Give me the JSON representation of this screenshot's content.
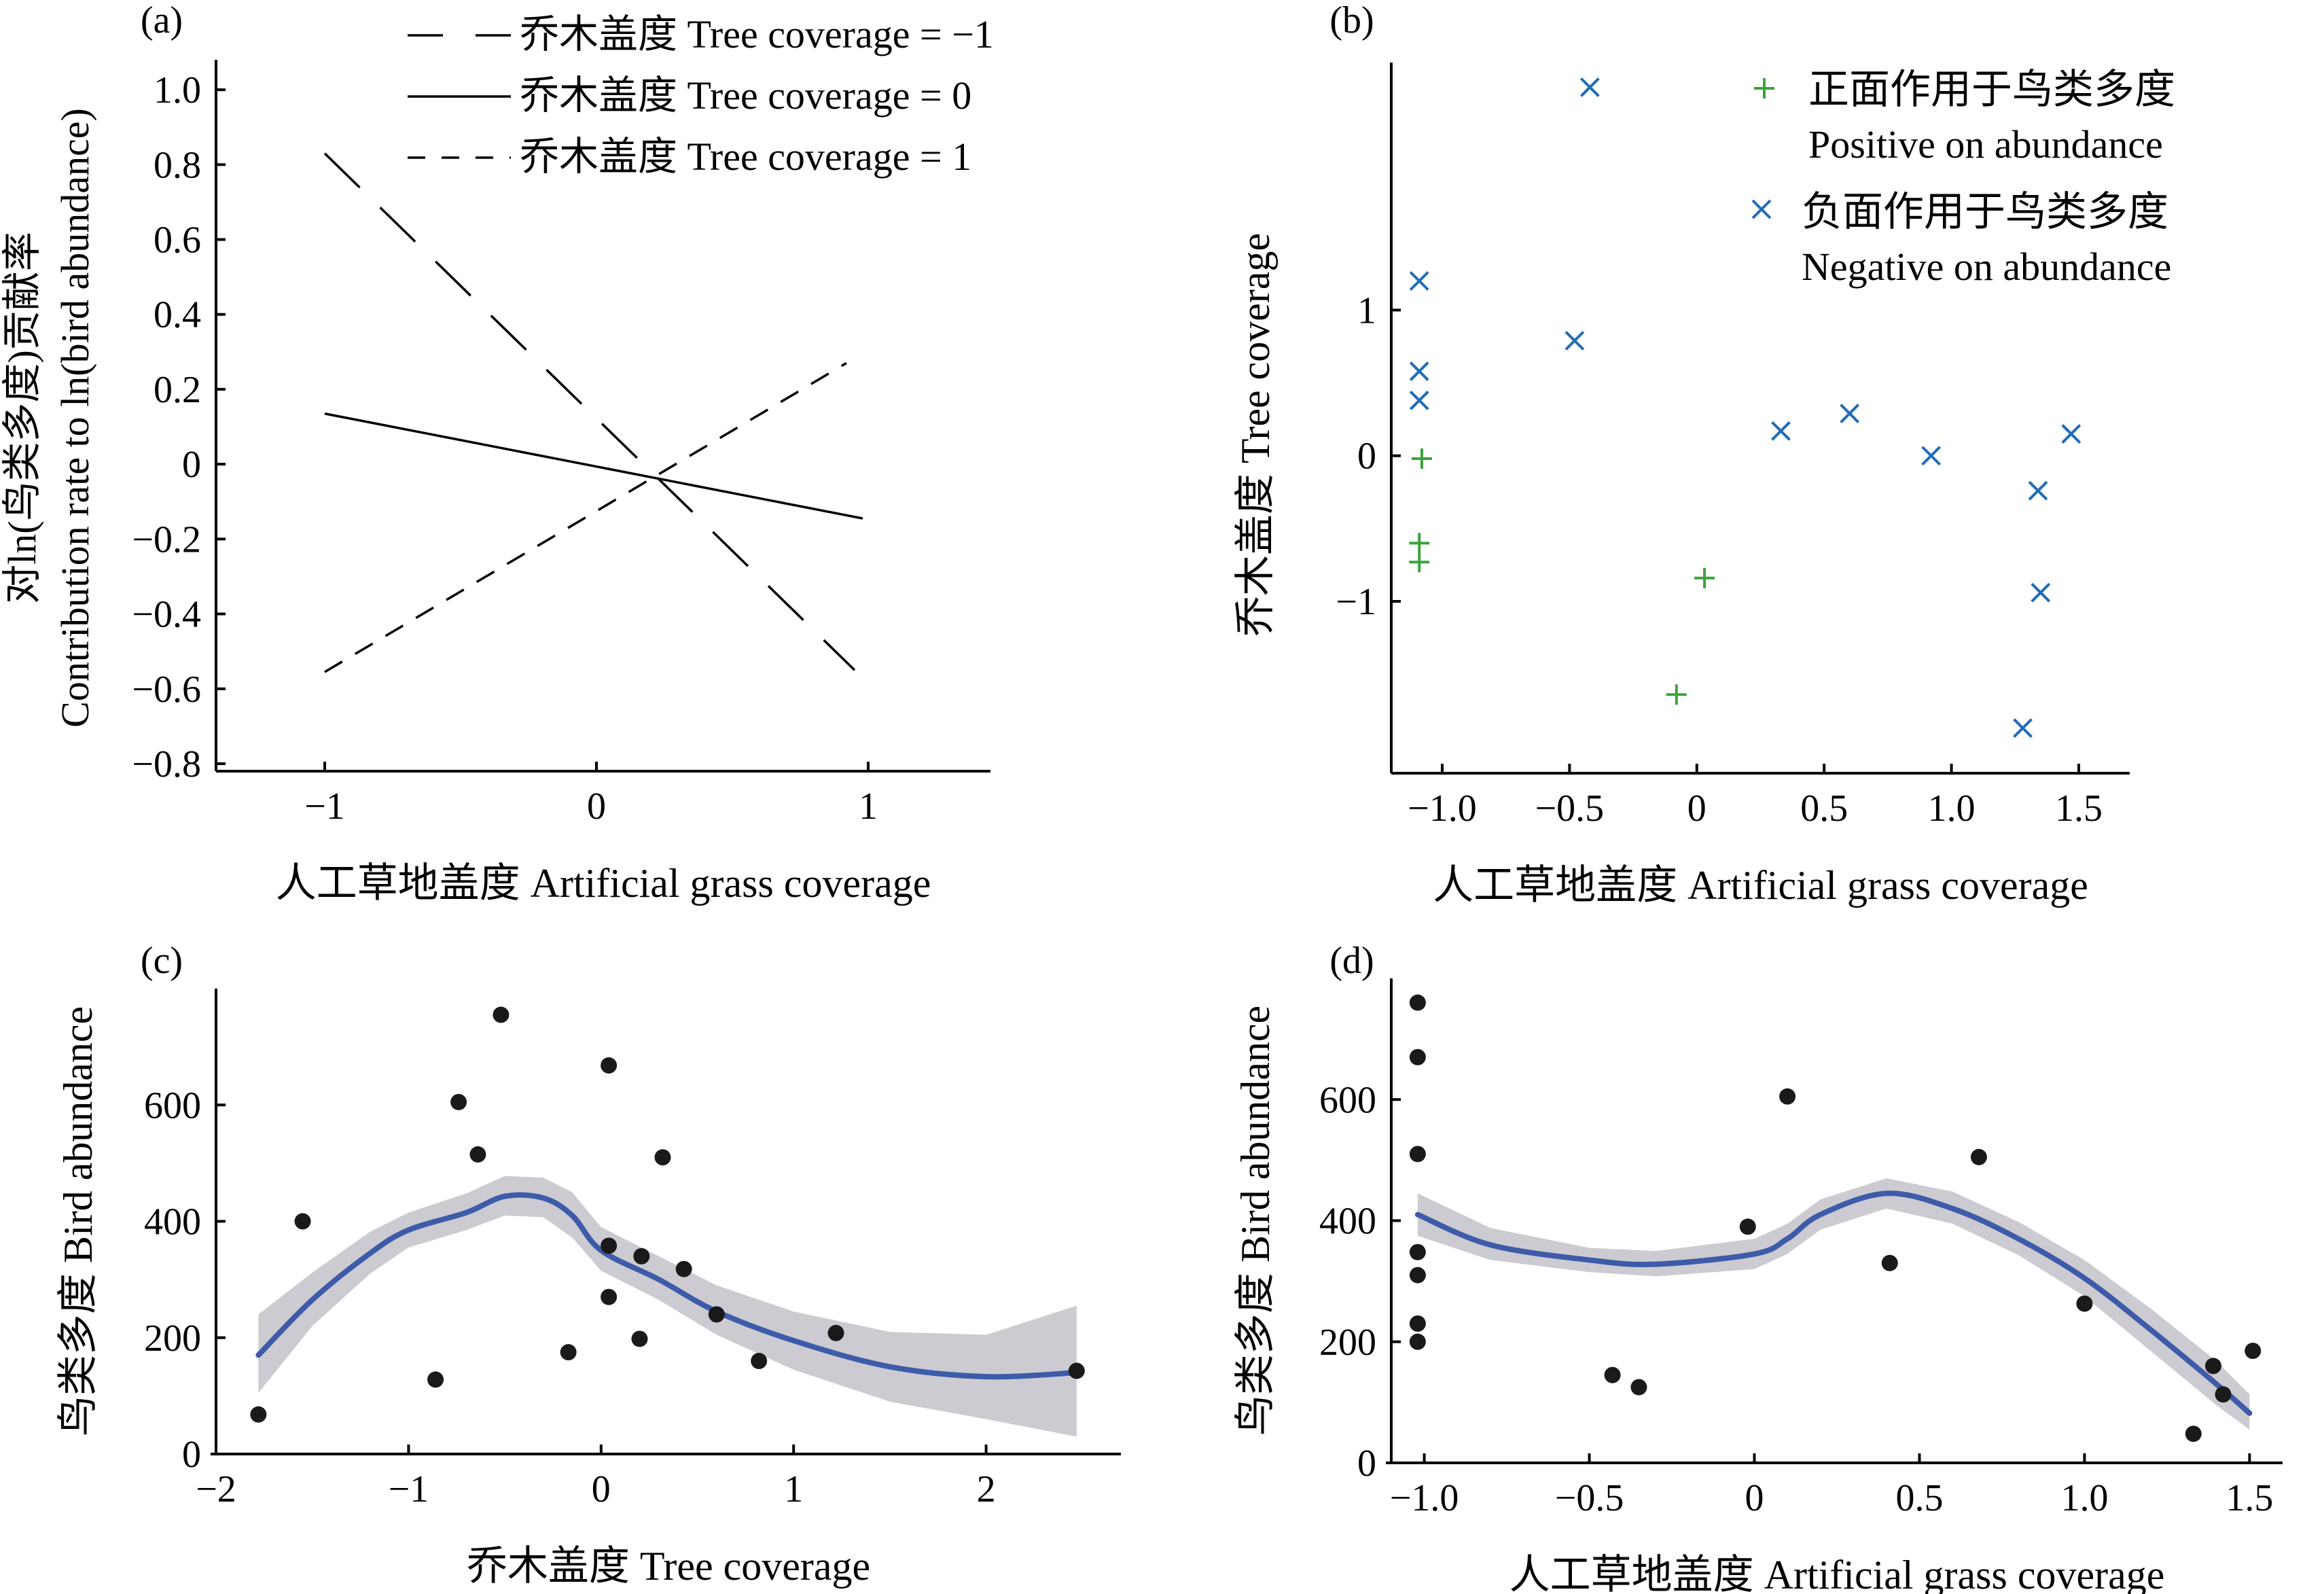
{
  "colors": {
    "blue_line": "#3D5BA9",
    "band": "#C9C8CF",
    "green": "#3CA33C",
    "blue_marker": "#1F6DB8",
    "point": "#1A1A1A"
  },
  "chart_data": [
    {
      "panel_label": "(a)",
      "type": "line",
      "xlabel": "人工草地盖度 Artificial grass coverage",
      "ylabel_cn": "对ln(鸟类多度)贡献率",
      "ylabel_en": "Contribution rate to ln(bird abundance)",
      "xlim": [
        -1.4,
        1.45
      ],
      "ylim": [
        -0.82,
        1.08
      ],
      "x_ticks": [
        -1,
        0,
        1
      ],
      "x_tick_labels": [
        "−1",
        "0",
        "1"
      ],
      "y_ticks": [
        -0.8,
        -0.6,
        -0.4,
        -0.2,
        0,
        0.2,
        0.4,
        0.6,
        0.8,
        1.0
      ],
      "y_tick_labels": [
        "−0.8",
        "−0.6",
        "−0.4",
        "−0.2",
        "0",
        "0.2",
        "0.4",
        "0.6",
        "0.8",
        "1.0"
      ],
      "legend_position": "top-right",
      "series": [
        {
          "name": "乔木盖度 Tree coverage = −1",
          "style": "long-dash",
          "x": [
            -1.0,
            0.95
          ],
          "y": [
            0.83,
            -0.55
          ]
        },
        {
          "name": "乔木盖度 Tree coverage = 0",
          "style": "solid",
          "x": [
            -1.0,
            0.98
          ],
          "y": [
            0.135,
            -0.145
          ]
        },
        {
          "name": "乔木盖度 Tree coverage = 1",
          "style": "short-dash",
          "x": [
            -1.0,
            0.92
          ],
          "y": [
            -0.555,
            0.27
          ]
        }
      ]
    },
    {
      "panel_label": "(b)",
      "type": "scatter",
      "xlabel": "人工草地盖度 Artificial grass coverage",
      "ylabel": "乔木盖度 Tree coverage",
      "xlim": [
        -1.2,
        1.7
      ],
      "ylim": [
        -2.18,
        2.7
      ],
      "x_ticks": [
        -1.0,
        -0.5,
        0,
        0.5,
        1.0,
        1.5
      ],
      "x_tick_labels": [
        "−1.0",
        "−0.5",
        "0",
        "0.5",
        "1.0",
        "1.5"
      ],
      "y_ticks": [
        -1,
        0,
        1
      ],
      "y_tick_labels": [
        "−1",
        "0",
        "1"
      ],
      "legend_position": "top-right",
      "series": [
        {
          "name_cn": "正面作用于鸟类多度",
          "name_en": "Positive on abundance",
          "marker": "plus",
          "x": [
            -1.08,
            -1.09,
            -1.09,
            0.03,
            -0.08
          ],
          "y": [
            -0.02,
            -0.6,
            -0.73,
            -0.84,
            -1.64
          ]
        },
        {
          "name_cn": "负面作用于鸟类多度",
          "name_en": "Negative on abundance",
          "marker": "x",
          "x": [
            -0.42,
            -1.09,
            -1.09,
            -1.09,
            -0.48,
            0.33,
            0.6,
            0.92,
            1.34,
            1.47,
            1.35,
            1.28
          ],
          "y": [
            2.53,
            1.2,
            0.58,
            0.38,
            0.79,
            0.17,
            0.29,
            0.0,
            -0.24,
            0.15,
            -0.94,
            -1.87
          ]
        }
      ]
    },
    {
      "panel_label": "(c)",
      "type": "scatter",
      "xlabel": "乔木盖度 Tree coverage",
      "ylabel": "鸟类多度 Bird abundance",
      "xlim": [
        -2.0,
        2.7
      ],
      "ylim": [
        0,
        800
      ],
      "x_ticks": [
        -2,
        -1,
        0,
        1,
        2
      ],
      "x_tick_labels": [
        "−2",
        "−1",
        "0",
        "1",
        "2"
      ],
      "y_ticks": [
        0,
        200,
        400,
        600
      ],
      "y_tick_labels": [
        "0",
        "200",
        "400",
        "600"
      ],
      "points": {
        "x": [
          -1.78,
          -1.55,
          -0.86,
          -0.74,
          -0.64,
          -0.52,
          -0.17,
          0.04,
          0.04,
          0.04,
          0.2,
          0.21,
          0.32,
          0.43,
          0.6,
          0.82,
          1.22,
          2.47
        ],
        "y": [
          68,
          400,
          128,
          605,
          515,
          755,
          175,
          668,
          358,
          270,
          198,
          340,
          510,
          318,
          240,
          160,
          208,
          143
        ]
      },
      "smooth": {
        "x": [
          -1.78,
          -1.5,
          -1.2,
          -1.0,
          -0.7,
          -0.5,
          -0.3,
          -0.15,
          0.0,
          0.3,
          0.6,
          1.0,
          1.5,
          2.0,
          2.47
        ],
        "y": [
          170,
          265,
          345,
          385,
          415,
          443,
          440,
          410,
          350,
          300,
          245,
          195,
          150,
          133,
          140
        ],
        "band_lower": [
          105,
          220,
          310,
          355,
          385,
          410,
          407,
          372,
          315,
          265,
          205,
          145,
          90,
          60,
          30
        ],
        "band_upper": [
          240,
          312,
          382,
          415,
          448,
          478,
          475,
          450,
          390,
          340,
          290,
          245,
          210,
          205,
          255
        ]
      }
    },
    {
      "panel_label": "(d)",
      "type": "scatter",
      "xlabel": "人工草地盖度 Artificial grass coverage",
      "ylabel": "鸟类多度 Bird abundance",
      "xlim": [
        -1.1,
        1.6
      ],
      "ylim": [
        0,
        800
      ],
      "x_ticks": [
        -1.0,
        -0.5,
        0,
        0.5,
        1.0,
        1.5
      ],
      "x_tick_labels": [
        "−1.0",
        "−0.5",
        "0",
        "0.5",
        "1.0",
        "1.5"
      ],
      "y_ticks": [
        0,
        200,
        400,
        600
      ],
      "y_tick_labels": [
        "0",
        "200",
        "400",
        "600"
      ],
      "points": {
        "x": [
          -1.02,
          -1.02,
          -1.02,
          -1.02,
          -1.02,
          -1.02,
          -1.02,
          -0.43,
          -0.35,
          -0.02,
          0.1,
          0.41,
          0.68,
          1.0,
          1.33,
          1.39,
          1.42,
          1.51
        ],
        "y": [
          760,
          670,
          510,
          348,
          310,
          230,
          200,
          145,
          125,
          390,
          605,
          330,
          505,
          263,
          48,
          160,
          113,
          185
        ]
      },
      "smooth": {
        "x": [
          -1.02,
          -0.8,
          -0.5,
          -0.3,
          0.0,
          0.1,
          0.2,
          0.4,
          0.6,
          0.8,
          1.0,
          1.2,
          1.4,
          1.5
        ],
        "y": [
          410,
          360,
          335,
          328,
          345,
          370,
          410,
          445,
          420,
          370,
          305,
          220,
          130,
          82
        ],
        "band_lower": [
          375,
          335,
          315,
          308,
          320,
          345,
          385,
          420,
          395,
          343,
          275,
          185,
          95,
          55
        ],
        "band_upper": [
          445,
          388,
          355,
          350,
          370,
          395,
          435,
          470,
          448,
          398,
          335,
          255,
          168,
          113
        ]
      }
    }
  ]
}
